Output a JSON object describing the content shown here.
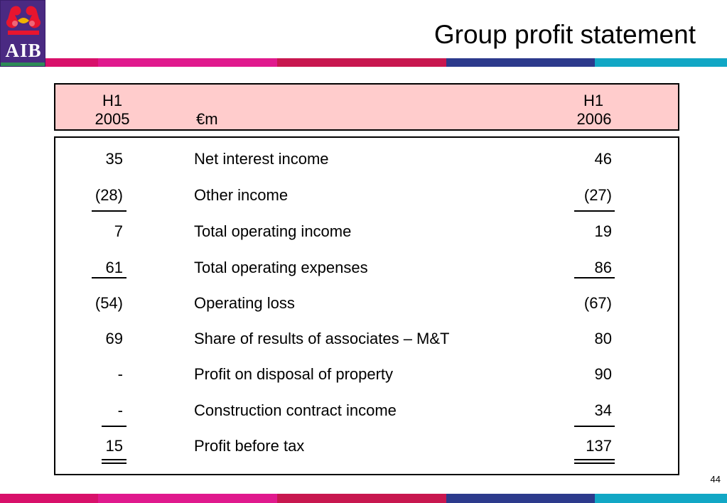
{
  "logo": {
    "text": "AIB",
    "colors": {
      "background": "#4a2a82",
      "emblem": "#e8152e",
      "stripe": "#2e8b57"
    }
  },
  "title": "Group profit statement",
  "colors": {
    "header_fill": "#ffcccc",
    "bar_segments": [
      "#d8106a",
      "#e0198d",
      "#c8174f",
      "#2c3a8c",
      "#11a7c5"
    ]
  },
  "header": {
    "left_col": {
      "line1": "H1",
      "line2": "2005"
    },
    "unit": "€m",
    "right_col": {
      "line1": "H1",
      "line2": "2006"
    }
  },
  "rows": [
    {
      "h1_2005": "35",
      "label": "Net interest income",
      "h1_2006": "46"
    },
    {
      "h1_2005": "(28)",
      "label": "Other income",
      "h1_2006": "(27)"
    },
    {
      "h1_2005": "7",
      "label": "Total operating income",
      "h1_2006": "19"
    },
    {
      "h1_2005": "61",
      "label": "Total operating expenses",
      "h1_2006": "86"
    },
    {
      "h1_2005": "(54)",
      "label": "Operating loss",
      "h1_2006": "(67)"
    },
    {
      "h1_2005": "69",
      "label": "Share of results of associates – M&T",
      "h1_2006": "80"
    },
    {
      "h1_2005": "-",
      "label": "Profit on disposal of property",
      "h1_2006": "90"
    },
    {
      "h1_2005": "-",
      "label": "Construction contract income",
      "h1_2006": "34"
    },
    {
      "h1_2005": "15",
      "label": "Profit before tax",
      "h1_2006": "137"
    }
  ],
  "page_number": "44"
}
